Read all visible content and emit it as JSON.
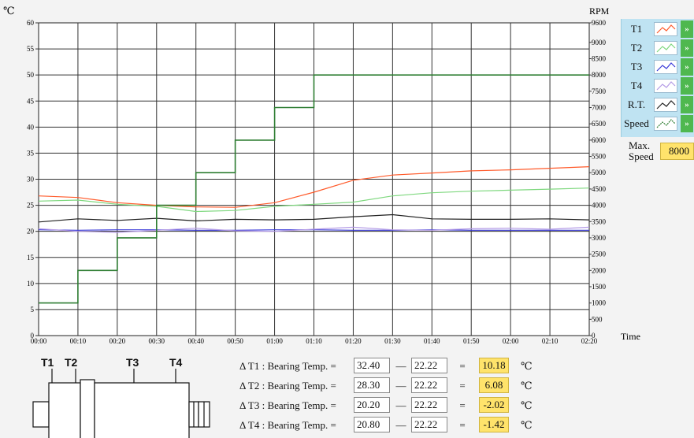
{
  "chart_data": {
    "type": "line",
    "left_unit": "℃",
    "right_unit": "RPM",
    "x_label": "Time",
    "x_ticks": [
      "00:00",
      "00:10",
      "00:20",
      "00:30",
      "00:40",
      "00:50",
      "01:00",
      "01:10",
      "01:20",
      "01:30",
      "01:40",
      "01:50",
      "02:00",
      "02:10",
      "02:20"
    ],
    "y_left_ticks": [
      0,
      5,
      10,
      15,
      20,
      25,
      30,
      35,
      40,
      45,
      50,
      55,
      60
    ],
    "y_right_ticks": [
      0,
      500,
      1000,
      1500,
      2000,
      2500,
      3000,
      3500,
      4000,
      4500,
      5000,
      5500,
      6000,
      6500,
      7000,
      7500,
      8000,
      8500,
      9000,
      9600
    ],
    "y_left_range": [
      0,
      60
    ],
    "y_right_range": [
      0,
      9600
    ],
    "x_range_min": [
      0,
      140
    ],
    "grid": true,
    "series": [
      {
        "name": "T1",
        "axis": "left",
        "color": "#ff5a2a",
        "x": [
          0,
          10,
          20,
          30,
          40,
          50,
          60,
          70,
          80,
          90,
          100,
          110,
          120,
          130,
          140
        ],
        "y": [
          26.8,
          26.5,
          25.5,
          25,
          24.7,
          24.6,
          25.5,
          27.5,
          29.8,
          30.8,
          31.2,
          31.6,
          31.8,
          32.1,
          32.4
        ]
      },
      {
        "name": "T2",
        "axis": "left",
        "color": "#7fd87f",
        "x": [
          0,
          10,
          20,
          30,
          40,
          50,
          60,
          70,
          80,
          90,
          100,
          110,
          120,
          130,
          140
        ],
        "y": [
          25.8,
          26,
          25.2,
          24.8,
          23.8,
          24,
          24.8,
          25.2,
          25.6,
          26.8,
          27.4,
          27.7,
          27.9,
          28.1,
          28.3
        ]
      },
      {
        "name": "T3",
        "axis": "left",
        "color": "#3a3ad8",
        "x": [
          0,
          10,
          20,
          30,
          40,
          50,
          60,
          70,
          80,
          90,
          100,
          110,
          120,
          130,
          140
        ],
        "y": [
          20.3,
          20.2,
          20.3,
          20.3,
          20.2,
          20.2,
          20.3,
          20.3,
          20.2,
          20.2,
          20.3,
          20.2,
          20.2,
          20.2,
          20.2
        ]
      },
      {
        "name": "T4",
        "axis": "left",
        "color": "#b49be6",
        "x": [
          0,
          10,
          20,
          30,
          40,
          50,
          60,
          70,
          80,
          90,
          100,
          110,
          120,
          130,
          140
        ],
        "y": [
          20.5,
          20,
          19.8,
          20.2,
          20.6,
          20.1,
          20,
          20.4,
          20.8,
          20.3,
          20.2,
          20.5,
          20.6,
          20.4,
          20.8
        ]
      },
      {
        "name": "R.T.",
        "axis": "left",
        "color": "#202020",
        "x": [
          0,
          10,
          20,
          30,
          40,
          50,
          60,
          70,
          80,
          90,
          100,
          110,
          120,
          130,
          140
        ],
        "y": [
          21.8,
          22.4,
          22.1,
          22.5,
          22,
          22.3,
          22.2,
          22.3,
          22.8,
          23.2,
          22.4,
          22.3,
          22.3,
          22.4,
          22.2
        ]
      },
      {
        "name": "Speed",
        "axis": "right",
        "color": "#2e7d32",
        "x": [
          0,
          10,
          10,
          20,
          20,
          30,
          30,
          40,
          40,
          50,
          50,
          60,
          60,
          70,
          70,
          140
        ],
        "y": [
          1000,
          1000,
          2000,
          2000,
          3000,
          3000,
          4000,
          4000,
          5000,
          5000,
          6000,
          6000,
          7000,
          7000,
          8000,
          8000
        ]
      }
    ]
  },
  "legend": {
    "items": [
      {
        "label": "T1",
        "toggle": "»"
      },
      {
        "label": "T2",
        "toggle": "»"
      },
      {
        "label": "T3",
        "toggle": "»"
      },
      {
        "label": "T4",
        "toggle": "»"
      },
      {
        "label": "R.T.",
        "toggle": "»"
      },
      {
        "label": "Speed",
        "toggle": "»"
      }
    ]
  },
  "max_speed": {
    "label_line1": "Max.",
    "label_line2": "Speed",
    "value": "8000"
  },
  "bearing_diagram": {
    "labels": [
      "T1",
      "T2",
      "T3",
      "T4"
    ]
  },
  "formulas": [
    {
      "label": "Δ T1 : Bearing Temp. =",
      "bearing": "32.40",
      "op": "—",
      "room": "22.22",
      "eq": "=",
      "result": "10.18",
      "unit": "℃"
    },
    {
      "label": "Δ T2 : Bearing Temp. =",
      "bearing": "28.30",
      "op": "—",
      "room": "22.22",
      "eq": "=",
      "result": "6.08",
      "unit": "℃"
    },
    {
      "label": "Δ T3 : Bearing Temp. =",
      "bearing": "20.20",
      "op": "—",
      "room": "22.22",
      "eq": "=",
      "result": "-2.02",
      "unit": "℃"
    },
    {
      "label": "Δ T4 : Bearing Temp. =",
      "bearing": "20.80",
      "op": "—",
      "room": "22.22",
      "eq": "=",
      "result": "-1.42",
      "unit": "℃"
    }
  ]
}
